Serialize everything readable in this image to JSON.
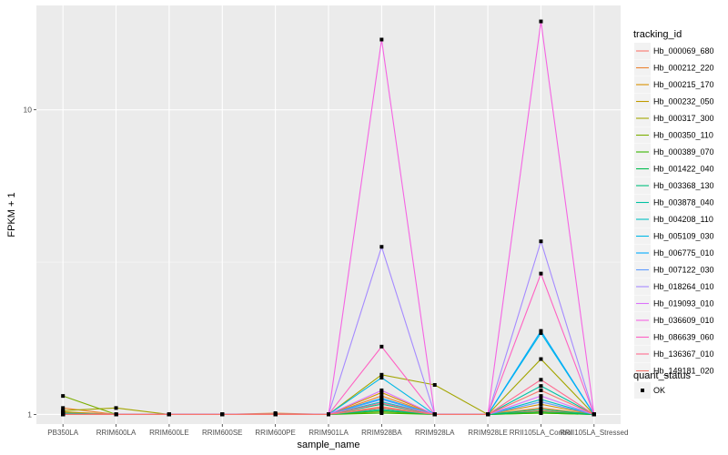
{
  "chart_data": {
    "type": "line",
    "title": "",
    "xlabel": "sample_name",
    "ylabel": "FPKM + 1",
    "y_scale": "log10",
    "ylim": [
      0.93,
      22
    ],
    "y_ticks": [
      1,
      10
    ],
    "y_tick_labels": [
      "1",
      "10"
    ],
    "grid": true,
    "categories": [
      "PB350LA",
      "RRIM600LA",
      "RRIM600LE",
      "RRIM600SE",
      "RRIM600PE",
      "RRIM901LA",
      "RRIM928BA",
      "RRIM928LA",
      "RRIM928LE",
      "RRII105LA_Control",
      "RRII105LA_Stressed"
    ],
    "legend": {
      "placement": "right",
      "title": "tracking_id",
      "status_title": "quant_status",
      "status_entries": [
        "OK"
      ]
    },
    "series": [
      {
        "name": "Hb_000069_680",
        "color": "#F8766D",
        "values": [
          1.02,
          1.0,
          1.0,
          1.0,
          1.0,
          1.0,
          1.06,
          1.0,
          1.0,
          1.03,
          1.0
        ]
      },
      {
        "name": "Hb_000212_220",
        "color": "#EA8331",
        "values": [
          1.05,
          1.0,
          1.0,
          1.0,
          1.01,
          1.0,
          1.15,
          1.0,
          1.0,
          1.05,
          1.0
        ]
      },
      {
        "name": "Hb_000215_170",
        "color": "#D89000",
        "values": [
          1.01,
          1.0,
          1.0,
          1.0,
          1.0,
          1.0,
          1.18,
          1.0,
          1.0,
          1.08,
          1.0
        ]
      },
      {
        "name": "Hb_000232_050",
        "color": "#C09B00",
        "values": [
          1.02,
          1.0,
          1.0,
          1.0,
          1.0,
          1.0,
          1.05,
          1.0,
          1.0,
          1.02,
          1.0
        ]
      },
      {
        "name": "Hb_000317_300",
        "color": "#A3A500",
        "values": [
          1.03,
          1.05,
          1.0,
          1.0,
          1.0,
          1.0,
          1.35,
          1.25,
          1.0,
          1.52,
          1.0
        ]
      },
      {
        "name": "Hb_000350_110",
        "color": "#7CAE00",
        "values": [
          1.15,
          1.0,
          1.0,
          1.0,
          1.0,
          1.0,
          1.02,
          1.0,
          1.0,
          1.01,
          1.0
        ]
      },
      {
        "name": "Hb_000389_070",
        "color": "#39B600",
        "values": [
          1.0,
          1.0,
          1.0,
          1.0,
          1.0,
          1.0,
          1.01,
          1.0,
          1.0,
          1.01,
          1.0
        ]
      },
      {
        "name": "Hb_001422_040",
        "color": "#00BB4E",
        "values": [
          1.0,
          1.0,
          1.0,
          1.0,
          1.0,
          1.0,
          1.03,
          1.0,
          1.0,
          1.02,
          1.0
        ]
      },
      {
        "name": "Hb_003368_130",
        "color": "#00BF7D",
        "values": [
          1.01,
          1.0,
          1.0,
          1.0,
          1.0,
          1.0,
          1.08,
          1.0,
          1.0,
          1.04,
          1.0
        ]
      },
      {
        "name": "Hb_003878_040",
        "color": "#00C1A3",
        "values": [
          1.0,
          1.0,
          1.0,
          1.0,
          1.0,
          1.0,
          1.04,
          1.0,
          1.0,
          1.24,
          1.0
        ]
      },
      {
        "name": "Hb_004208_110",
        "color": "#00BFC4",
        "values": [
          1.0,
          1.0,
          1.0,
          1.0,
          1.0,
          1.0,
          1.1,
          1.0,
          1.0,
          1.12,
          1.0
        ]
      },
      {
        "name": "Hb_005109_030",
        "color": "#00B8E5",
        "values": [
          1.0,
          1.0,
          1.0,
          1.0,
          1.0,
          1.0,
          1.32,
          1.0,
          1.0,
          1.85,
          1.0
        ]
      },
      {
        "name": "Hb_006775_010",
        "color": "#00ABFD",
        "values": [
          1.0,
          1.0,
          1.0,
          1.0,
          1.0,
          1.0,
          1.13,
          1.0,
          1.0,
          1.88,
          1.0
        ]
      },
      {
        "name": "Hb_007122_030",
        "color": "#619CFF",
        "values": [
          1.0,
          1.0,
          1.0,
          1.0,
          1.0,
          1.0,
          1.12,
          1.0,
          1.0,
          1.1,
          1.0
        ]
      },
      {
        "name": "Hb_018264_010",
        "color": "#A58AFF",
        "values": [
          1.0,
          1.0,
          1.0,
          1.0,
          1.0,
          1.0,
          3.55,
          1.0,
          1.0,
          3.7,
          1.0
        ]
      },
      {
        "name": "Hb_019093_010",
        "color": "#DB72FB",
        "values": [
          1.0,
          1.0,
          1.0,
          1.0,
          1.0,
          1.0,
          1.2,
          1.0,
          1.0,
          1.15,
          1.0
        ]
      },
      {
        "name": "Hb_036609_010",
        "color": "#F564E3",
        "values": [
          1.0,
          1.0,
          1.0,
          1.0,
          1.0,
          1.0,
          17.0,
          1.0,
          1.0,
          19.5,
          1.0
        ]
      },
      {
        "name": "Hb_086639_060",
        "color": "#FF61C3",
        "values": [
          1.0,
          1.0,
          1.0,
          1.0,
          1.0,
          1.0,
          1.67,
          1.0,
          1.0,
          2.9,
          1.0
        ]
      },
      {
        "name": "Hb_136367_010",
        "color": "#FF6C91",
        "values": [
          1.0,
          1.0,
          1.0,
          1.0,
          1.0,
          1.0,
          1.09,
          1.0,
          1.0,
          1.3,
          1.0
        ]
      },
      {
        "name": "Hb_149181_020",
        "color": "#F8766D",
        "values": [
          1.0,
          1.0,
          1.0,
          1.0,
          1.0,
          1.0,
          1.05,
          1.0,
          1.0,
          1.2,
          1.0
        ]
      }
    ]
  }
}
